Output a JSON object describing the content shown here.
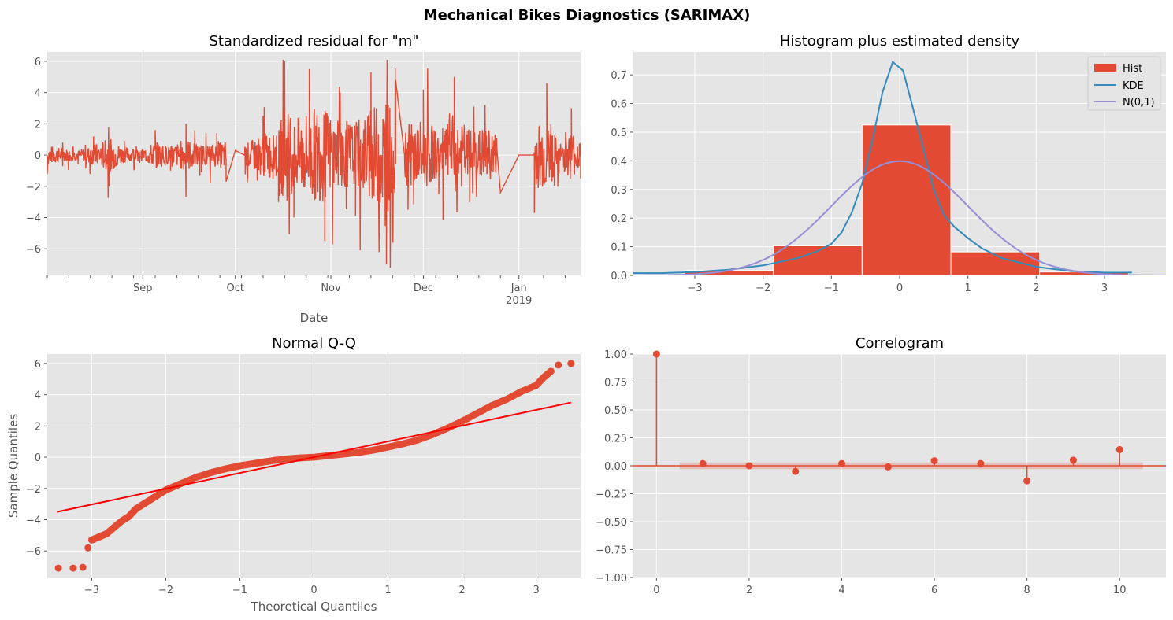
{
  "figure": {
    "suptitle": "Mechanical Bikes Diagnostics (SARIMAX)"
  },
  "colors": {
    "red": "#E24A33",
    "blue": "#348ABD",
    "purple": "#988ED5",
    "qq_line": "#FF0000",
    "panel_bg": "#E5E5E5",
    "grid": "#FFFFFF"
  },
  "chart_data": [
    {
      "type": "line",
      "title": "Standardized residual for \"m\"",
      "xlabel": "Date",
      "ylabel": "",
      "x_ticks": [
        "Sep",
        "Oct",
        "Nov",
        "Dec",
        "Jan\n2019"
      ],
      "y_ticks": [
        -6,
        -4,
        -2,
        0,
        2,
        4,
        6
      ],
      "ylim": [
        -7.7,
        6.6
      ],
      "x_range": [
        "2018-08-01",
        "2019-01-21"
      ],
      "series": [
        {
          "x_dates": [
            "2018-08-01",
            "2018-08-06",
            "2018-08-11",
            "2018-08-16",
            "2018-08-21",
            "2018-08-26",
            "2018-08-31",
            "2018-09-05",
            "2018-09-10",
            "2018-09-15",
            "2018-09-20",
            "2018-09-25",
            "2018-09-28",
            "2018-10-01",
            "2018-10-05",
            "2018-10-10",
            "2018-10-15",
            "2018-10-17",
            "2018-10-20",
            "2018-10-25",
            "2018-10-30",
            "2018-11-04",
            "2018-11-09",
            "2018-11-14",
            "2018-11-19",
            "2018-11-22",
            "2018-11-26",
            "2018-12-01",
            "2018-12-06",
            "2018-12-11",
            "2018-12-16",
            "2018-12-21",
            "2018-12-26",
            "2019-01-01",
            "2019-01-06",
            "2019-01-10",
            "2019-01-14",
            "2019-01-18",
            "2019-01-21"
          ],
          "values": [
            -1.2,
            0.8,
            -0.6,
            1.2,
            -2.0,
            0.9,
            -0.5,
            1.6,
            -1.0,
            2.0,
            -1.1,
            1.4,
            -1.7,
            0.3,
            -1.5,
            2.5,
            -3.0,
            6.0,
            -4.0,
            5.5,
            -5.5,
            4.0,
            -3.9,
            5.3,
            -7.0,
            4.8,
            -3.5,
            4.2,
            -2.5,
            5.0,
            -3.0,
            3.2,
            -2.4,
            0.0,
            -3.7,
            4.6,
            -1.2,
            3.0,
            -1.5
          ]
        }
      ]
    },
    {
      "type": "bar",
      "title": "Histogram plus estimated density",
      "xlabel": "",
      "ylabel": "",
      "x_ticks": [
        -3,
        -2,
        -1,
        0,
        1,
        2,
        3
      ],
      "y_ticks": [
        0.0,
        0.1,
        0.2,
        0.3,
        0.4,
        0.5,
        0.6,
        0.7
      ],
      "xlim": [
        -3.9,
        3.9
      ],
      "ylim": [
        0,
        0.78
      ],
      "legend": [
        "Hist",
        "KDE",
        "N(0,1)"
      ],
      "legend_position": "top-right",
      "bins": [
        {
          "left": -3.15,
          "right": -1.85,
          "height": 0.017
        },
        {
          "left": -1.85,
          "right": -0.55,
          "height": 0.103
        },
        {
          "left": -0.55,
          "right": 0.75,
          "height": 0.525
        },
        {
          "left": 0.75,
          "right": 2.05,
          "height": 0.082
        },
        {
          "left": 2.05,
          "right": 3.35,
          "height": 0.012
        }
      ],
      "kde": {
        "x": [
          -3.9,
          -3.5,
          -3.0,
          -2.5,
          -2.0,
          -1.5,
          -1.2,
          -1.0,
          -0.85,
          -0.7,
          -0.55,
          -0.4,
          -0.25,
          -0.1,
          0.05,
          0.2,
          0.35,
          0.5,
          0.65,
          0.8,
          1.0,
          1.2,
          1.5,
          2.0,
          2.5,
          3.0,
          3.4
        ],
        "y": [
          0.008,
          0.008,
          0.012,
          0.02,
          0.035,
          0.06,
          0.085,
          0.11,
          0.15,
          0.22,
          0.32,
          0.47,
          0.64,
          0.745,
          0.715,
          0.58,
          0.44,
          0.3,
          0.21,
          0.17,
          0.13,
          0.095,
          0.06,
          0.03,
          0.015,
          0.01,
          0.01
        ]
      },
      "normal_pdf": {
        "mean": 0,
        "std": 1
      }
    },
    {
      "type": "scatter",
      "title": "Normal Q-Q",
      "xlabel": "Theoretical Quantiles",
      "ylabel": "Sample Quantiles",
      "x_ticks": [
        -3,
        -2,
        -1,
        0,
        1,
        2,
        3
      ],
      "y_ticks": [
        -6,
        -4,
        -2,
        0,
        2,
        4,
        6
      ],
      "xlim": [
        -3.6,
        3.6
      ],
      "ylim": [
        -7.7,
        6.6
      ],
      "points": {
        "x": [
          -3.45,
          -3.25,
          -3.12,
          -3.05,
          -3.0,
          -2.9,
          -2.8,
          -2.7,
          -2.6,
          -2.5,
          -2.4,
          -2.3,
          -2.2,
          -2.1,
          -2.0,
          -1.9,
          -1.8,
          -1.6,
          -1.4,
          -1.2,
          -1.0,
          -0.8,
          -0.6,
          -0.4,
          -0.2,
          0.0,
          0.2,
          0.4,
          0.6,
          0.8,
          1.0,
          1.2,
          1.4,
          1.6,
          1.8,
          2.0,
          2.2,
          2.4,
          2.6,
          2.8,
          3.0,
          3.1,
          3.2,
          3.3,
          3.47
        ],
        "y": [
          -7.1,
          -7.1,
          -7.05,
          -5.8,
          -5.3,
          -5.1,
          -4.9,
          -4.5,
          -4.1,
          -3.8,
          -3.3,
          -3.0,
          -2.7,
          -2.4,
          -2.1,
          -1.9,
          -1.7,
          -1.3,
          -1.0,
          -0.75,
          -0.55,
          -0.4,
          -0.25,
          -0.12,
          -0.05,
          0.0,
          0.1,
          0.2,
          0.3,
          0.45,
          0.65,
          0.85,
          1.1,
          1.45,
          1.85,
          2.3,
          2.8,
          3.3,
          3.7,
          4.2,
          4.6,
          5.1,
          5.5,
          5.9,
          6.0
        ]
      },
      "reference_line": {
        "x": [
          -3.47,
          3.47
        ],
        "y": [
          -3.5,
          3.5
        ]
      }
    },
    {
      "type": "scatter",
      "title": "Correlogram",
      "xlabel": "",
      "ylabel": "",
      "x_ticks": [
        0,
        2,
        4,
        6,
        8,
        10
      ],
      "y_ticks": [
        "1.00",
        "0.75",
        "0.50",
        "0.25",
        "0.00",
        "−0.25",
        "−0.50",
        "−0.75",
        "−1.00"
      ],
      "xlim": [
        -0.5,
        11.0
      ],
      "ylim": [
        -1.0,
        1.0
      ],
      "lags": [
        0,
        1,
        2,
        3,
        4,
        5,
        6,
        7,
        8,
        9,
        10
      ],
      "acf": [
        1.0,
        0.02,
        0.0,
        -0.05,
        0.02,
        -0.01,
        0.045,
        0.02,
        -0.135,
        0.05,
        0.145
      ],
      "confidence_band": {
        "from_lag": 0.5,
        "to_lag": 10.5,
        "halfwidth": 0.03
      }
    }
  ]
}
